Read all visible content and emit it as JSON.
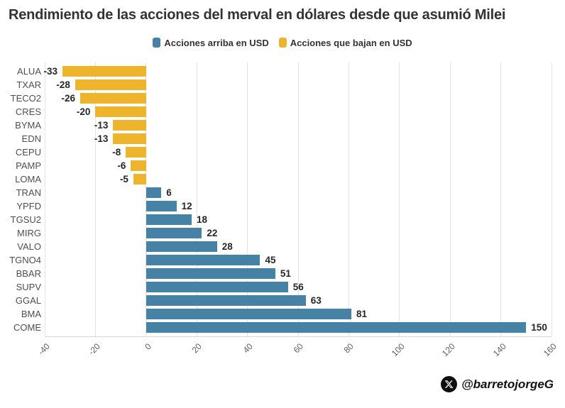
{
  "title": "Rendimiento de las acciones del merval en dólares desde que asumió Milei",
  "legend": [
    {
      "label": "Acciones arriba en USD",
      "color": "#4682A5"
    },
    {
      "label": "Acciones que bajan en USD",
      "color": "#EEB52C"
    }
  ],
  "footer": {
    "handle": "@barretojorgeG",
    "icon": "x-logo-icon"
  },
  "chart_data": {
    "type": "bar",
    "orientation": "horizontal",
    "title": "Rendimiento de las acciones del merval en dólares desde que asumió Milei",
    "categories": [
      "ALUA",
      "TXAR",
      "TECO2",
      "CRES",
      "BYMA",
      "EDN",
      "CEPU",
      "PAMP",
      "LOMA",
      "TRAN",
      "YPFD",
      "TGSU2",
      "MIRG",
      "VALO",
      "TGNO4",
      "BBAR",
      "SUPV",
      "GGAL",
      "BMA",
      "COME"
    ],
    "values": [
      -33,
      -28,
      -26,
      -20,
      -13,
      -13,
      -8,
      -6,
      -5,
      6,
      12,
      18,
      22,
      28,
      45,
      51,
      56,
      63,
      81,
      150
    ],
    "xlim": [
      -40,
      160
    ],
    "xticks": [
      -40,
      -20,
      0,
      20,
      40,
      60,
      80,
      100,
      120,
      140,
      160
    ],
    "grid": true,
    "legend_position": "top",
    "colors": {
      "positive": "#4682A5",
      "negative": "#EEB52C"
    },
    "series_names": {
      "positive": "Acciones arriba en USD",
      "negative": "Acciones que bajan en USD"
    }
  }
}
